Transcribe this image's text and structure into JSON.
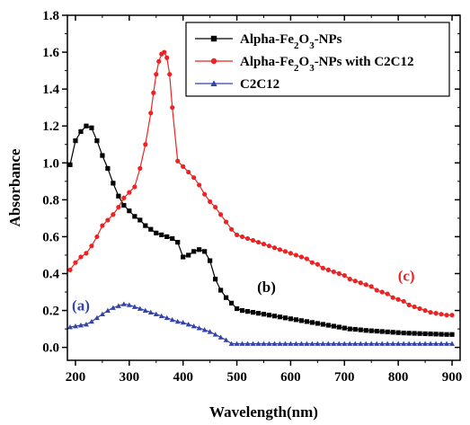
{
  "chart_data": {
    "type": "line",
    "xlabel": "Wavelength(nm)",
    "ylabel": "Absorbance",
    "xlim": [
      185,
      915
    ],
    "ylim": [
      -0.07,
      1.8
    ],
    "x_ticks": [
      200,
      300,
      400,
      500,
      600,
      700,
      800,
      900
    ],
    "y_ticks": [
      0.0,
      0.2,
      0.4,
      0.6,
      0.8,
      1.0,
      1.2,
      1.4,
      1.6,
      1.8
    ],
    "x_tick_labels": [
      "200",
      "300",
      "400",
      "500",
      "600",
      "700",
      "800",
      "900"
    ],
    "y_tick_labels": [
      "0.0",
      "0.2",
      "0.4",
      "0.6",
      "0.8",
      "1.0",
      "1.2",
      "1.4",
      "1.6",
      "1.8"
    ],
    "legend_position": "top-right",
    "series": [
      {
        "name": "Alpha-Fe2O3-NPs",
        "color": "#000000",
        "marker": "square",
        "x": [
          190,
          200,
          210,
          220,
          230,
          240,
          250,
          260,
          270,
          280,
          290,
          300,
          310,
          320,
          330,
          340,
          350,
          360,
          370,
          380,
          390,
          400,
          410,
          420,
          430,
          440,
          450,
          460,
          470,
          480,
          490,
          500,
          510,
          520,
          530,
          540,
          550,
          560,
          570,
          580,
          590,
          600,
          610,
          620,
          630,
          640,
          650,
          660,
          670,
          680,
          690,
          700,
          710,
          720,
          730,
          740,
          750,
          760,
          770,
          780,
          790,
          800,
          810,
          820,
          830,
          840,
          850,
          860,
          870,
          880,
          890,
          900
        ],
        "y": [
          0.99,
          1.12,
          1.17,
          1.2,
          1.19,
          1.12,
          1.04,
          0.97,
          0.89,
          0.82,
          0.77,
          0.74,
          0.71,
          0.69,
          0.66,
          0.64,
          0.62,
          0.61,
          0.6,
          0.59,
          0.57,
          0.49,
          0.5,
          0.52,
          0.53,
          0.52,
          0.47,
          0.37,
          0.31,
          0.27,
          0.24,
          0.21,
          0.2,
          0.195,
          0.19,
          0.185,
          0.18,
          0.175,
          0.17,
          0.165,
          0.16,
          0.155,
          0.15,
          0.145,
          0.14,
          0.135,
          0.13,
          0.125,
          0.12,
          0.115,
          0.11,
          0.105,
          0.1,
          0.098,
          0.095,
          0.092,
          0.09,
          0.088,
          0.086,
          0.084,
          0.082,
          0.08,
          0.078,
          0.077,
          0.076,
          0.075,
          0.074,
          0.073,
          0.072,
          0.071,
          0.07,
          0.07
        ]
      },
      {
        "name": "Alpha-Fe2O3-NPs with C2C12",
        "color": "#ee2222",
        "marker": "circle",
        "x": [
          190,
          200,
          210,
          220,
          230,
          240,
          250,
          260,
          270,
          280,
          290,
          300,
          310,
          320,
          330,
          340,
          345,
          350,
          355,
          360,
          365,
          370,
          375,
          380,
          390,
          400,
          410,
          420,
          430,
          440,
          450,
          460,
          470,
          480,
          490,
          500,
          510,
          520,
          530,
          540,
          550,
          560,
          570,
          580,
          590,
          600,
          610,
          620,
          630,
          640,
          650,
          660,
          670,
          680,
          690,
          700,
          710,
          720,
          730,
          740,
          750,
          760,
          770,
          780,
          790,
          800,
          810,
          820,
          830,
          840,
          850,
          860,
          870,
          880,
          890,
          900
        ],
        "y": [
          0.42,
          0.46,
          0.49,
          0.51,
          0.55,
          0.6,
          0.66,
          0.69,
          0.72,
          0.76,
          0.81,
          0.84,
          0.87,
          0.97,
          1.1,
          1.27,
          1.38,
          1.48,
          1.55,
          1.59,
          1.6,
          1.57,
          1.48,
          1.3,
          1.01,
          0.98,
          0.95,
          0.92,
          0.88,
          0.83,
          0.79,
          0.76,
          0.72,
          0.68,
          0.64,
          0.61,
          0.6,
          0.59,
          0.58,
          0.57,
          0.56,
          0.55,
          0.54,
          0.53,
          0.52,
          0.51,
          0.5,
          0.49,
          0.48,
          0.46,
          0.45,
          0.43,
          0.42,
          0.41,
          0.4,
          0.39,
          0.37,
          0.36,
          0.35,
          0.34,
          0.33,
          0.31,
          0.3,
          0.29,
          0.27,
          0.26,
          0.25,
          0.23,
          0.22,
          0.21,
          0.2,
          0.19,
          0.185,
          0.18,
          0.175,
          0.175
        ]
      },
      {
        "name": "C2C12",
        "color": "#3344aa",
        "marker": "triangle",
        "x": [
          190,
          200,
          210,
          220,
          230,
          240,
          250,
          260,
          270,
          280,
          290,
          300,
          310,
          320,
          330,
          340,
          350,
          360,
          370,
          380,
          390,
          400,
          410,
          420,
          430,
          440,
          450,
          460,
          470,
          480,
          490,
          500,
          510,
          520,
          530,
          540,
          550,
          560,
          570,
          580,
          590,
          600,
          610,
          620,
          630,
          640,
          650,
          660,
          670,
          680,
          690,
          700,
          710,
          720,
          730,
          740,
          750,
          760,
          770,
          780,
          790,
          800,
          810,
          820,
          830,
          840,
          850,
          860,
          870,
          880,
          890,
          900
        ],
        "y": [
          0.11,
          0.115,
          0.12,
          0.125,
          0.14,
          0.16,
          0.18,
          0.2,
          0.215,
          0.225,
          0.235,
          0.23,
          0.22,
          0.21,
          0.2,
          0.19,
          0.18,
          0.17,
          0.16,
          0.15,
          0.14,
          0.135,
          0.125,
          0.115,
          0.105,
          0.095,
          0.085,
          0.07,
          0.055,
          0.04,
          0.02,
          0.02,
          0.02,
          0.02,
          0.02,
          0.02,
          0.02,
          0.02,
          0.02,
          0.02,
          0.02,
          0.02,
          0.02,
          0.02,
          0.02,
          0.02,
          0.02,
          0.02,
          0.02,
          0.02,
          0.02,
          0.02,
          0.02,
          0.02,
          0.02,
          0.02,
          0.02,
          0.02,
          0.02,
          0.02,
          0.02,
          0.02,
          0.02,
          0.02,
          0.02,
          0.02,
          0.02,
          0.02,
          0.02,
          0.02,
          0.02,
          0.02
        ]
      }
    ],
    "annotations": [
      {
        "text": "(a)",
        "x": 210,
        "y": 0.2,
        "color": "#3344aa"
      },
      {
        "text": "(b)",
        "x": 555,
        "y": 0.3,
        "color": "#000000"
      },
      {
        "text": "(c)",
        "x": 815,
        "y": 0.36,
        "color": "#ee2222"
      }
    ]
  }
}
